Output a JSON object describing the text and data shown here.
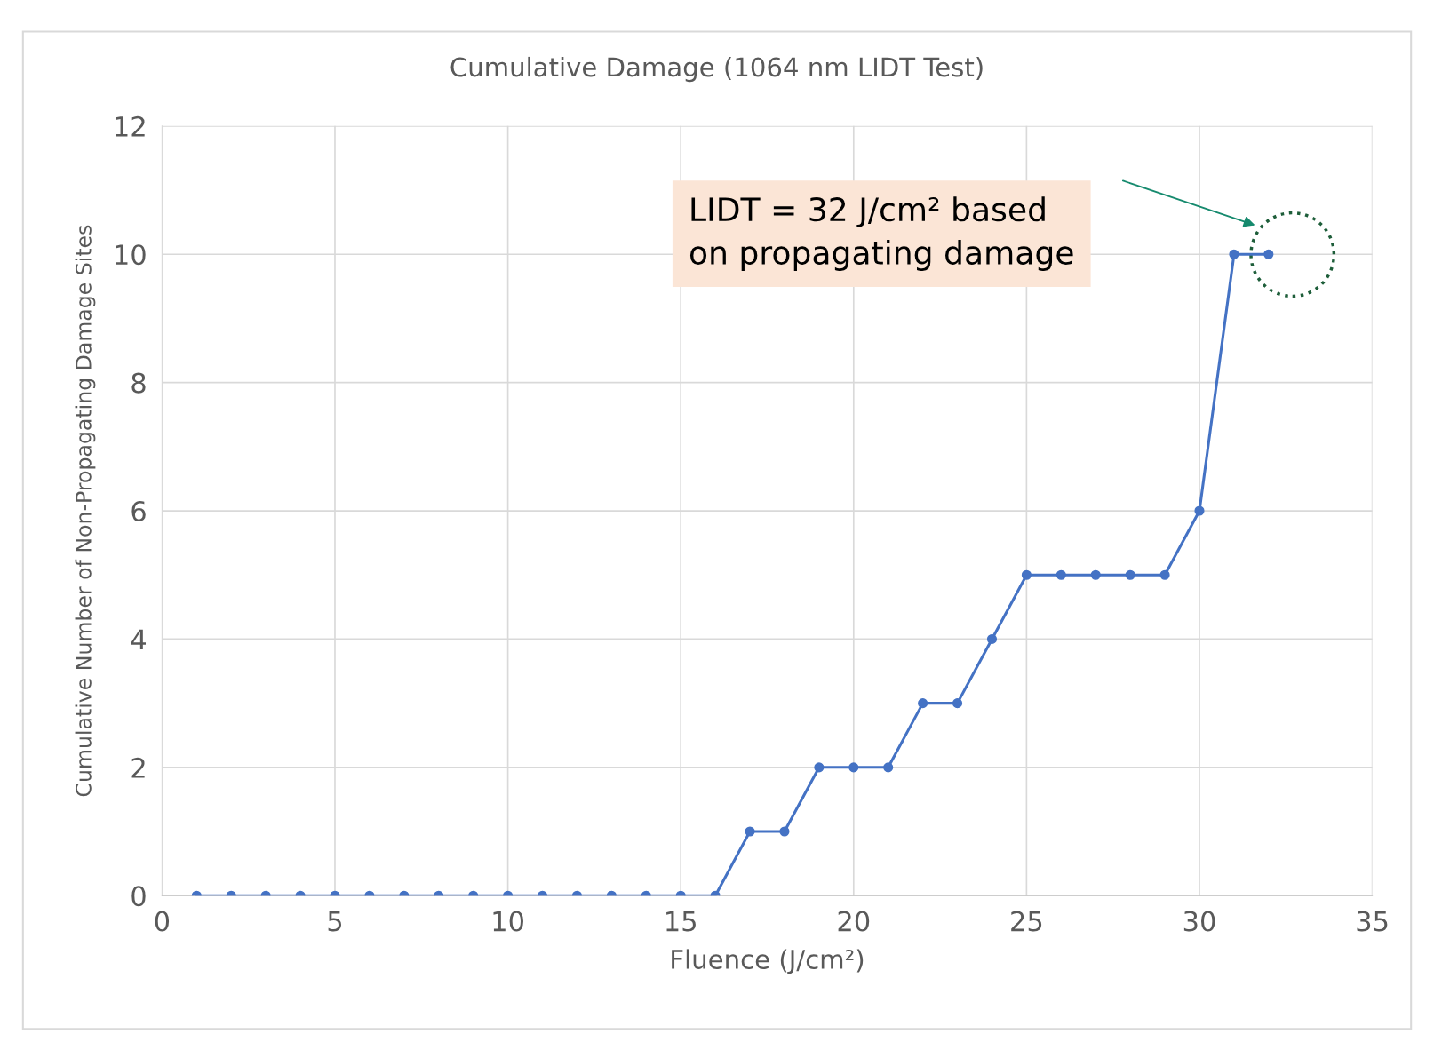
{
  "chart_data": {
    "type": "line",
    "title": "Cumulative Damage (1064 nm LIDT Test)",
    "xlabel": "Fluence (J/cm²)",
    "ylabel": "Cumulative Number of Non-Propagating Damage Sites",
    "x": [
      1,
      2,
      3,
      4,
      5,
      6,
      7,
      8,
      9,
      10,
      11,
      12,
      13,
      14,
      15,
      16,
      17,
      18,
      19,
      20,
      21,
      22,
      23,
      24,
      25,
      26,
      27,
      28,
      29,
      30,
      31,
      32
    ],
    "series": [
      {
        "color": "#4472c4",
        "values": [
          0,
          0,
          0,
          0,
          0,
          0,
          0,
          0,
          0,
          0,
          0,
          0,
          0,
          0,
          0,
          0,
          1,
          1,
          2,
          2,
          2,
          3,
          3,
          4,
          5,
          5,
          5,
          5,
          5,
          6,
          10,
          10
        ]
      }
    ],
    "xlim": [
      0,
      35
    ],
    "xticks": [
      0,
      5,
      10,
      15,
      20,
      25,
      30,
      35
    ],
    "ylim": [
      0,
      12
    ],
    "yticks": [
      0,
      2,
      4,
      6,
      8,
      10,
      12
    ],
    "grid": true,
    "marker": "circle",
    "line_style": "solid",
    "annotations": [
      "LIDT = 32 J/cm² based\non propagating damage"
    ]
  }
}
